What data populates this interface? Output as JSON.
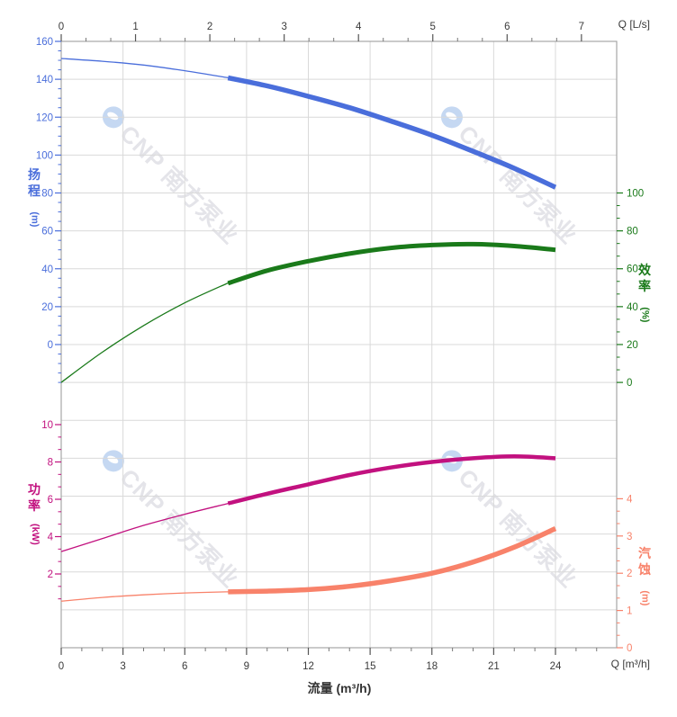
{
  "watermark": {
    "text": "CNP 南方泵业"
  },
  "corner_labels": {
    "top_right": "Q [L/s]",
    "bottom_right": "Q [m³/h]"
  },
  "axis_titles": {
    "head": {
      "chars": [
        "扬",
        "程"
      ],
      "unit": "(m)"
    },
    "eff": {
      "chars": [
        "效",
        "率"
      ],
      "unit": "(%)"
    },
    "power": {
      "chars": [
        "功",
        "率"
      ],
      "unit": "(kW)"
    },
    "npsh": {
      "chars": [
        "汽",
        "蚀"
      ],
      "unit": "(m)"
    }
  },
  "colors": {
    "grid": "#d9d9d9",
    "border": "#a6a6a6",
    "xaxis_text": "#3a3a3a",
    "head": "#4a6edb",
    "eff": "#1a7a1a",
    "power": "#c2117f",
    "npsh": "#f8826a",
    "background": "#ffffff"
  },
  "chart_data": {
    "type": "line",
    "title": "",
    "x_bottom": {
      "axis_title": "流量 (m³/h)",
      "unit_label": "Q [m³/h]",
      "min": 0,
      "max": 24,
      "ticks": [
        0,
        3,
        6,
        9,
        12,
        15,
        18,
        21,
        24
      ],
      "minor_step": 1
    },
    "x_top": {
      "unit_label": "Q [L/s]",
      "min": 0,
      "max": 7,
      "ticks": [
        0,
        1,
        2,
        3,
        4,
        5,
        6,
        7
      ]
    },
    "y_axes": {
      "head": {
        "label": "扬程 (m)",
        "side": "left",
        "ticks": [
          160,
          140,
          120,
          100,
          80,
          60,
          40,
          20,
          0
        ]
      },
      "eff": {
        "label": "效率 (%)",
        "side": "right",
        "ticks": [
          100,
          80,
          60,
          40,
          20,
          0
        ]
      },
      "power": {
        "label": "功率 (kW)",
        "side": "left",
        "ticks": [
          10,
          8,
          6,
          4,
          2
        ]
      },
      "npsh": {
        "label": "汽蚀 (m)",
        "side": "right",
        "ticks": [
          4,
          3,
          2,
          1,
          0
        ]
      }
    },
    "series": [
      {
        "id": "head",
        "name": "扬程",
        "axis": "head",
        "color": "#4a6edb",
        "solid_from": 8.1,
        "thick_width": 5.5,
        "x": [
          0,
          2,
          4,
          6,
          8,
          10,
          12,
          14,
          16,
          18,
          20,
          22,
          24
        ],
        "y": [
          151,
          149.5,
          147.5,
          144.5,
          141,
          136.5,
          131,
          125,
          118,
          110.5,
          102,
          93,
          83
        ]
      },
      {
        "id": "eff",
        "name": "效率",
        "axis": "eff",
        "color": "#1a7a1a",
        "solid_from": 8.1,
        "thick_width": 5,
        "x": [
          0,
          2,
          4,
          6,
          8,
          10,
          12,
          14,
          16,
          18,
          20,
          22,
          24
        ],
        "y": [
          0,
          16,
          30,
          42,
          52,
          59,
          64,
          68,
          71,
          72.5,
          73,
          72,
          70
        ]
      },
      {
        "id": "power",
        "name": "功率",
        "axis": "power",
        "color": "#c2117f",
        "solid_from": 8.1,
        "thick_width": 4.5,
        "x": [
          0,
          2,
          4,
          6,
          8,
          10,
          12,
          14,
          16,
          18,
          20,
          22,
          24
        ],
        "y": [
          3.2,
          3.9,
          4.6,
          5.2,
          5.75,
          6.3,
          6.8,
          7.3,
          7.7,
          8.0,
          8.2,
          8.3,
          8.2
        ]
      },
      {
        "id": "npsh",
        "name": "汽蚀",
        "axis": "npsh",
        "color": "#f8826a",
        "solid_from": 8.1,
        "thick_width": 5.5,
        "x": [
          0,
          2,
          4,
          6,
          8,
          10,
          12,
          14,
          16,
          18,
          20,
          22,
          24
        ],
        "y": [
          1.25,
          1.35,
          1.42,
          1.47,
          1.5,
          1.52,
          1.56,
          1.65,
          1.8,
          2.0,
          2.3,
          2.7,
          3.2
        ]
      }
    ]
  }
}
